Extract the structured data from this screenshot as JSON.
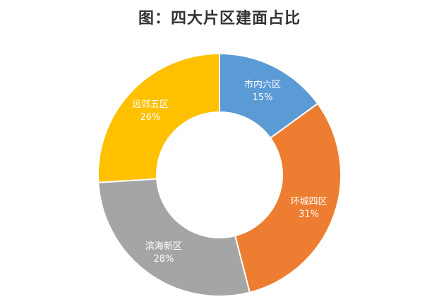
{
  "chart_data": {
    "type": "pie",
    "title": "图：四大片区建面占比",
    "categories": [
      "市内六区",
      "环城四区",
      "滨海新区",
      "远郊五区"
    ],
    "values": [
      15,
      31,
      28,
      26
    ],
    "value_labels": [
      "15%",
      "31%",
      "28%",
      "26%"
    ],
    "colors": [
      "#5B9BD5",
      "#ED7D31",
      "#A5A5A5",
      "#FFC000"
    ],
    "donut": true,
    "legend": "none"
  }
}
